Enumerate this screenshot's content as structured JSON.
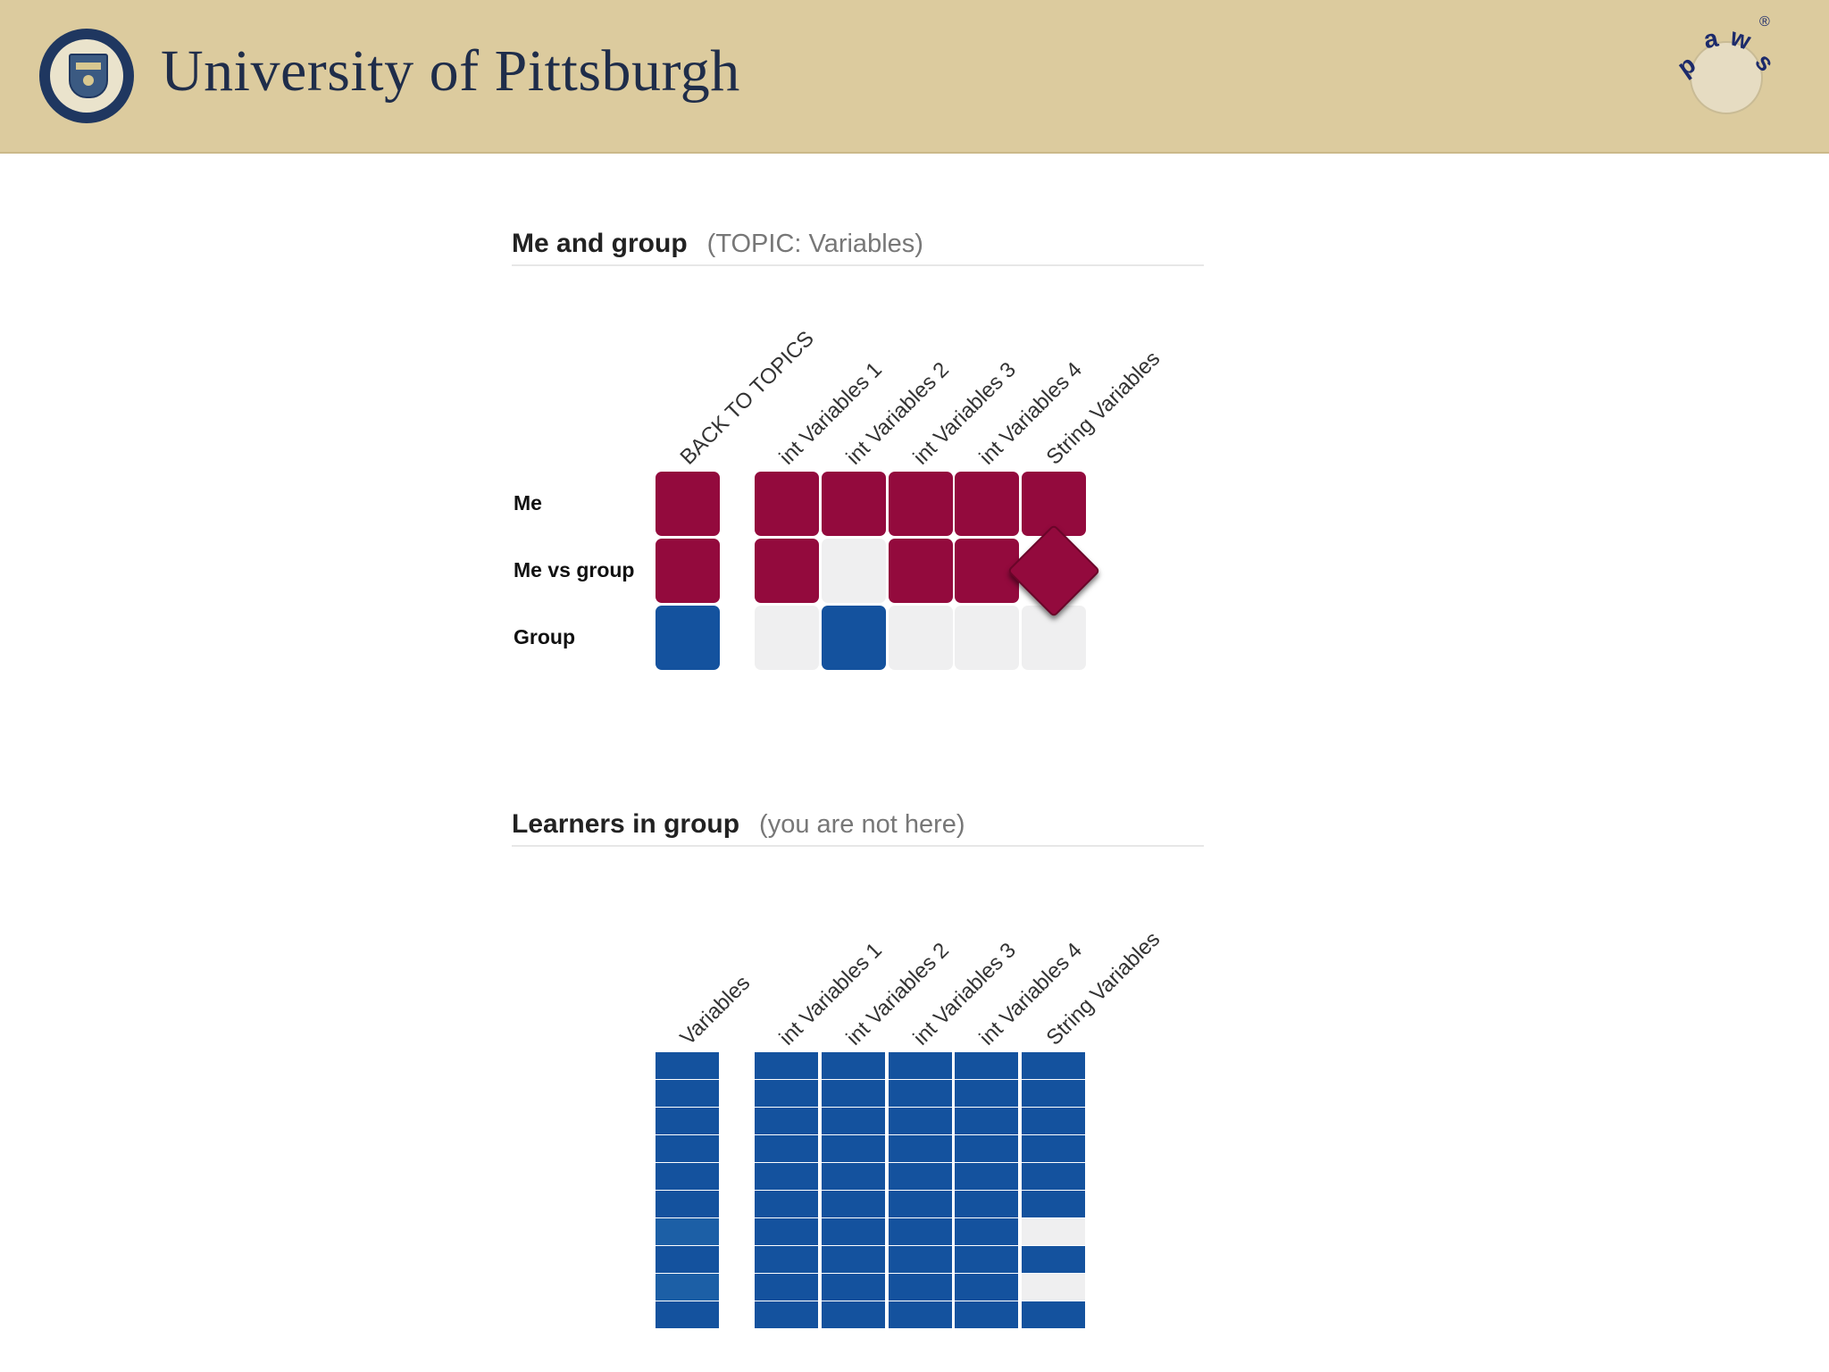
{
  "header": {
    "university_name": "University of Pittsburgh",
    "seal_icon": "university-seal-icon",
    "paws_logo": {
      "letters": [
        "p",
        "a",
        "w",
        "s"
      ],
      "registered": "®"
    }
  },
  "colors": {
    "header_bg": "#dccb9e",
    "maroon": "#930a3d",
    "blue": "#14529e",
    "grey": "#efeff0"
  },
  "me_and_group": {
    "title": "Me and group",
    "subtitle": "(TOPIC: Variables)",
    "columns": [
      "BACK TO TOPICS",
      "int Variables 1",
      "int Variables 2",
      "int Variables 3",
      "int Variables 4",
      "String Variables"
    ],
    "rows": [
      {
        "label": "Me",
        "cells": [
          "maroon",
          "maroon",
          "maroon",
          "maroon",
          "maroon",
          "maroon"
        ]
      },
      {
        "label": "Me vs group",
        "cells": [
          "maroon",
          "maroon",
          "grey",
          "maroon",
          "maroon",
          "diamond"
        ]
      },
      {
        "label": "Group",
        "cells": [
          "blue",
          "grey",
          "blue",
          "grey",
          "grey",
          "grey"
        ]
      }
    ]
  },
  "learners": {
    "title": "Learners in group",
    "subtitle": "(you are not here)",
    "columns": [
      "Variables",
      "int Variables 1",
      "int Variables 2",
      "int Variables 3",
      "int Variables 4",
      "String Variables"
    ],
    "grid": [
      [
        "blue",
        "blue",
        "blue",
        "blue",
        "blue",
        "blue"
      ],
      [
        "blue",
        "blue",
        "blue",
        "blue",
        "blue",
        "blue"
      ],
      [
        "blue",
        "blue",
        "blue",
        "blue",
        "blue",
        "blue"
      ],
      [
        "blue",
        "blue",
        "blue",
        "blue",
        "blue",
        "blue"
      ],
      [
        "blue",
        "blue",
        "blue",
        "blue",
        "blue",
        "blue"
      ],
      [
        "blue",
        "blue",
        "blue",
        "blue",
        "blue",
        "blue"
      ],
      [
        "lightblue",
        "blue",
        "blue",
        "blue",
        "blue",
        "grey"
      ],
      [
        "blue",
        "blue",
        "blue",
        "blue",
        "blue",
        "blue"
      ],
      [
        "lightblue",
        "blue",
        "blue",
        "blue",
        "blue",
        "grey"
      ],
      [
        "blue",
        "blue",
        "blue",
        "blue",
        "blue",
        "blue"
      ]
    ]
  }
}
